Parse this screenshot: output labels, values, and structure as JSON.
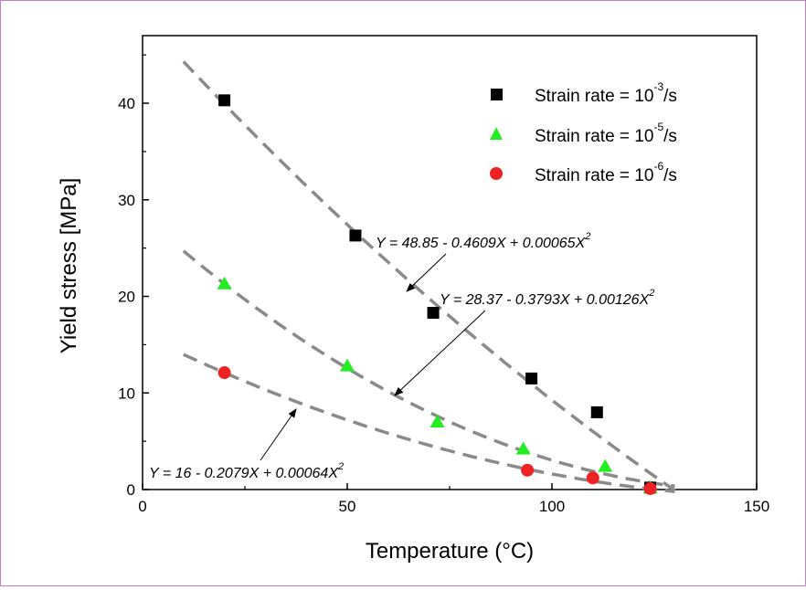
{
  "chart_data": {
    "type": "scatter",
    "title": "",
    "xlabel": "Temperature (°C)",
    "ylabel": "Yield stress [MPa]",
    "xlim": [
      0,
      150
    ],
    "ylim": [
      0,
      47
    ],
    "x_ticks": [
      0,
      50,
      100,
      150
    ],
    "y_ticks": [
      0,
      10,
      20,
      30,
      40
    ],
    "grid": false,
    "legend_position": "top-right",
    "series": [
      {
        "name": "Strain rate = 10^-3/s",
        "legend_base": "Strain rate = 10",
        "legend_exp": "-3",
        "legend_tail": "/s",
        "marker": "square",
        "color": "#000000",
        "x": [
          20,
          52,
          71,
          95,
          111,
          124
        ],
        "y": [
          40.3,
          26.3,
          18.3,
          11.5,
          8.0,
          0.2
        ],
        "fit": {
          "equation": "Y = 48.85 - 0.4609X + 0.00065X",
          "equation_exp": "2",
          "a": 48.85,
          "b": -0.4609,
          "c": 0.00065,
          "x_range": [
            10,
            130
          ]
        }
      },
      {
        "name": "Strain rate = 10^-5/s",
        "legend_base": "Strain rate = 10",
        "legend_exp": "-5",
        "legend_tail": "/s",
        "marker": "triangle",
        "color": "#22ee22",
        "x": [
          20,
          50,
          72,
          93,
          113,
          124
        ],
        "y": [
          21.3,
          12.8,
          7.0,
          4.2,
          2.4,
          0.2
        ],
        "fit": {
          "equation": "Y = 28.37 - 0.3793X + 0.00126X",
          "equation_exp": "2",
          "a": 28.37,
          "b": -0.3793,
          "c": 0.00126,
          "x_range": [
            10,
            130
          ]
        }
      },
      {
        "name": "Strain rate = 10^-6/s",
        "legend_base": "Strain rate = 10",
        "legend_exp": "-6",
        "legend_tail": "/s",
        "marker": "circle",
        "color": "#ee2222",
        "x": [
          20,
          94,
          110,
          124
        ],
        "y": [
          12.1,
          2.0,
          1.2,
          0.1
        ],
        "fit": {
          "equation": "Y = 16 - 0.2079X + 0.00064X",
          "equation_exp": "2",
          "a": 16,
          "b": -0.2079,
          "c": 0.00064,
          "x_range": [
            10,
            130
          ]
        }
      }
    ]
  }
}
